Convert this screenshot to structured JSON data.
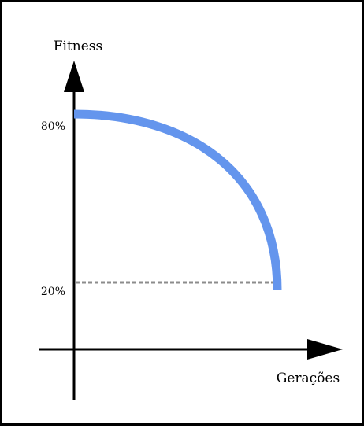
{
  "chart_data": {
    "type": "line",
    "title": "",
    "xlabel": "Gerações",
    "ylabel": "Fitness",
    "yticks": [
      "80%",
      "20%"
    ],
    "ytick_values": [
      80,
      20
    ],
    "grid": false,
    "series": [
      {
        "color": "#6495ED",
        "shape": "concave-down arc",
        "start": {
          "x": 0,
          "y": 80
        },
        "end": {
          "x": 1,
          "y": 20
        }
      }
    ],
    "reference_line": {
      "style": "dashed",
      "color": "#8c8c8c",
      "y": 20
    }
  }
}
